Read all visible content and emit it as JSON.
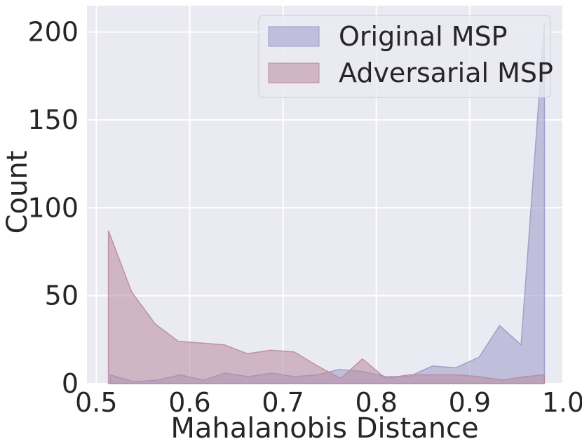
{
  "chart_data": {
    "type": "area",
    "xlabel": "Mahalanobis Distance",
    "ylabel": "Count",
    "xlim": [
      0.49,
      1.0
    ],
    "ylim": [
      0,
      215
    ],
    "xticks": [
      0.5,
      0.6,
      0.7,
      0.8,
      0.9,
      1.0
    ],
    "xtick_labels": [
      "0.5",
      "0.6",
      "0.7",
      "0.8",
      "0.9",
      "1.0"
    ],
    "yticks": [
      0,
      50,
      100,
      150,
      200
    ],
    "ytick_labels": [
      "0",
      "50",
      "100",
      "150",
      "200"
    ],
    "grid": true,
    "legend_position": "top-right",
    "series": [
      {
        "name": "Original MSP",
        "color": "#9a9ac8",
        "x": [
          0.515,
          0.54,
          0.565,
          0.59,
          0.615,
          0.638,
          0.663,
          0.688,
          0.712,
          0.737,
          0.76,
          0.785,
          0.81,
          0.835,
          0.86,
          0.885,
          0.91,
          0.932,
          0.955,
          0.98
        ],
        "y": [
          5,
          1,
          2,
          5,
          2,
          6,
          4,
          6,
          4,
          5,
          8,
          7,
          4,
          4,
          10,
          9,
          15,
          33,
          22,
          205
        ]
      },
      {
        "name": "Adversarial MSP",
        "color": "#b98a9f",
        "x": [
          0.513,
          0.538,
          0.563,
          0.588,
          0.613,
          0.637,
          0.662,
          0.687,
          0.712,
          0.737,
          0.762,
          0.785,
          0.81,
          0.835,
          0.86,
          0.885,
          0.91,
          0.935,
          0.96,
          0.98
        ],
        "y": [
          87,
          52,
          34,
          24,
          23,
          22,
          17,
          19,
          18,
          10,
          3,
          14,
          3,
          5,
          5,
          5,
          4,
          2,
          4,
          5
        ]
      }
    ]
  }
}
